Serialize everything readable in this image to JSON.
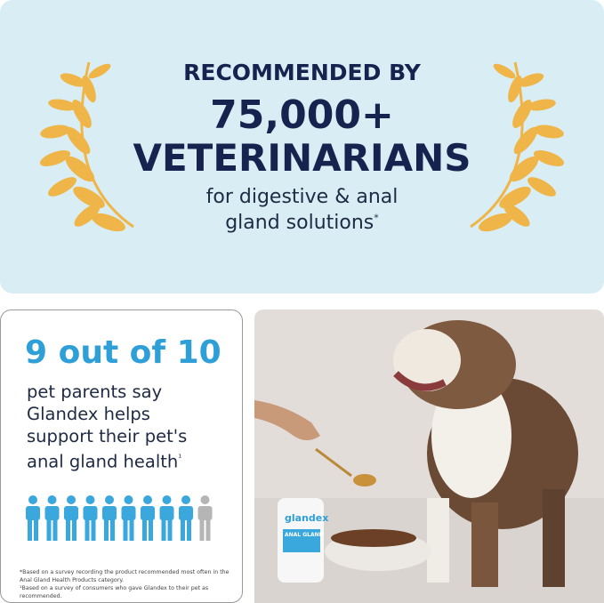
{
  "banner": {
    "line1": "RECOMMENDED BY",
    "line2": "75,000+",
    "line3": "VETERINARIANS",
    "line4": "for digestive & anal",
    "line5": "gland solutions",
    "line5_mark": "*"
  },
  "stat": {
    "headline": "9 out of 10",
    "lines": [
      "pet parents say",
      "Glandex helps",
      "support their pet's",
      "anal gland health"
    ],
    "line_mark": "¹"
  },
  "footnotes": [
    "*Based on a survey recording the product recommended most often in the Anal Gland Health Products category.",
    "¹Based on a survey of consumers who gave Glandex to their pet as recommended."
  ],
  "product": {
    "brand": "glandex",
    "label": "ANAL GLAND"
  }
}
